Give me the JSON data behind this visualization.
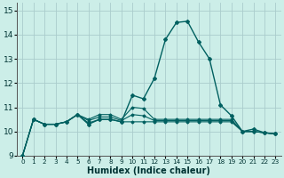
{
  "title": "",
  "xlabel": "Humidex (Indice chaleur)",
  "bg_color": "#cceee8",
  "grid_color": "#aacccc",
  "line_color": "#006060",
  "xlim": [
    -0.5,
    23.5
  ],
  "ylim": [
    9,
    15.3
  ],
  "yticks": [
    9,
    10,
    11,
    12,
    13,
    14,
    15
  ],
  "xticks": [
    0,
    1,
    2,
    3,
    4,
    5,
    6,
    7,
    8,
    9,
    10,
    11,
    12,
    13,
    14,
    15,
    16,
    17,
    18,
    19,
    20,
    21,
    22,
    23
  ],
  "series": [
    [
      9.0,
      10.5,
      10.3,
      10.3,
      10.4,
      10.7,
      10.3,
      10.5,
      10.5,
      10.4,
      11.5,
      11.35,
      12.2,
      13.8,
      14.5,
      14.55,
      13.7,
      13.0,
      11.1,
      10.65,
      10.0,
      10.1,
      9.95,
      9.9
    ],
    [
      9.0,
      10.5,
      10.3,
      10.3,
      10.4,
      10.7,
      10.35,
      10.5,
      10.5,
      10.4,
      10.4,
      10.4,
      10.4,
      10.4,
      10.4,
      10.4,
      10.4,
      10.4,
      10.4,
      10.4,
      10.0,
      10.0,
      9.95,
      9.9
    ],
    [
      9.0,
      10.5,
      10.3,
      10.3,
      10.4,
      10.7,
      10.5,
      10.7,
      10.7,
      10.5,
      11.0,
      10.95,
      10.5,
      10.5,
      10.5,
      10.5,
      10.5,
      10.5,
      10.5,
      10.5,
      10.0,
      10.0,
      9.95,
      9.9
    ],
    [
      9.0,
      10.5,
      10.3,
      10.3,
      10.4,
      10.7,
      10.45,
      10.6,
      10.6,
      10.45,
      10.7,
      10.65,
      10.45,
      10.45,
      10.45,
      10.45,
      10.45,
      10.45,
      10.45,
      10.45,
      10.0,
      10.0,
      9.95,
      9.9
    ]
  ]
}
